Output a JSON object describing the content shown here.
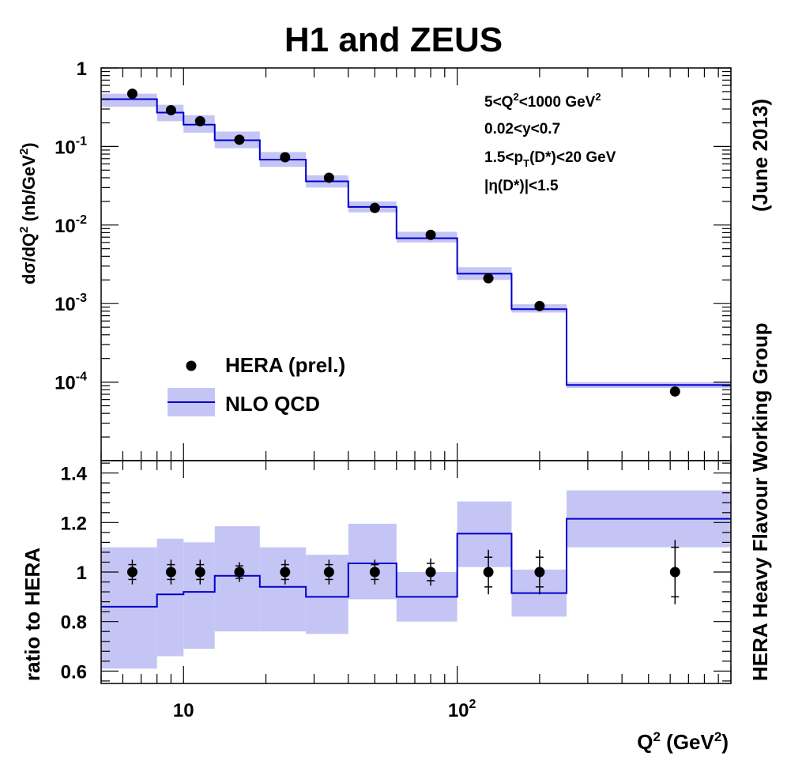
{
  "title": "H1 and ZEUS",
  "side_label": "HERA Heavy Flavour Working Group",
  "side_date": "(June 2013)",
  "chart_data": [
    {
      "type": "scatter",
      "panel": "cross-section",
      "xscale": "log",
      "yscale": "log",
      "xlim": [
        5,
        1000
      ],
      "ylim": [
        1e-05,
        1
      ],
      "ylabel_parts": {
        "a": "dσ/dQ",
        "sup": "2",
        "b": " (nb/GeV",
        "sup2": "2",
        "c": ")"
      },
      "y_ticks": [
        {
          "v": 1,
          "base": "1",
          "exp": ""
        },
        {
          "v": 0.1,
          "base": "10",
          "exp": "-1"
        },
        {
          "v": 0.01,
          "base": "10",
          "exp": "-2"
        },
        {
          "v": 0.001,
          "base": "10",
          "exp": "-3"
        },
        {
          "v": 0.0001,
          "base": "10",
          "exp": "-4"
        }
      ],
      "cuts": [
        {
          "pre": "5<Q",
          "sup": "2",
          "post": "<1000 GeV",
          "sup2": "2"
        },
        {
          "pre": "0.02<y<0.7"
        },
        {
          "pre": "1.5<p",
          "sub": "T",
          "post": "(D*)<20 GeV"
        },
        {
          "pre": "|η(D*)|<1.5"
        }
      ],
      "legend": [
        "HERA (prel.)",
        "NLO QCD"
      ],
      "bin_edges": [
        5,
        8,
        10,
        13,
        19,
        28,
        40,
        60,
        100,
        158,
        251,
        1000
      ],
      "series": [
        {
          "name": "HERA (prel.)",
          "x": [
            6.5,
            9,
            11.5,
            16,
            23.5,
            34,
            50,
            80,
            130,
            200,
            625
          ],
          "y": [
            0.47,
            0.29,
            0.21,
            0.122,
            0.073,
            0.04,
            0.0165,
            0.0075,
            0.0021,
            0.00093,
            7.6e-05
          ]
        },
        {
          "name": "NLO QCD",
          "values": [
            0.4,
            0.27,
            0.19,
            0.12,
            0.068,
            0.036,
            0.017,
            0.0068,
            0.0024,
            0.00085,
            9.2e-05
          ],
          "band_low": [
            0.32,
            0.21,
            0.15,
            0.095,
            0.055,
            0.03,
            0.0145,
            0.006,
            0.002,
            0.00077,
            8.4e-05
          ],
          "band_high": [
            0.47,
            0.34,
            0.25,
            0.155,
            0.085,
            0.043,
            0.02,
            0.0082,
            0.0029,
            0.00098,
            0.0001
          ]
        }
      ]
    },
    {
      "type": "scatter",
      "panel": "ratio",
      "xscale": "log",
      "xlim": [
        5,
        1000
      ],
      "ylim": [
        0.55,
        1.45
      ],
      "xlabel_parts": {
        "a": "Q",
        "sup": "2",
        "b": " (GeV",
        "sup2": "2",
        "c": ")"
      },
      "ylabel": "ratio to HERA",
      "y_ticks": [
        {
          "v": 0.6,
          "label": "0.6"
        },
        {
          "v": 0.8,
          "label": "0.8"
        },
        {
          "v": 1,
          "label": "1"
        },
        {
          "v": 1.2,
          "label": "1.2"
        },
        {
          "v": 1.4,
          "label": "1.4"
        }
      ],
      "x_ticks": [
        {
          "v": 10,
          "base": "10",
          "exp": ""
        },
        {
          "v": 100,
          "base": "10",
          "exp": "2"
        }
      ],
      "bin_edges": [
        5,
        8,
        10,
        13,
        19,
        28,
        40,
        60,
        100,
        158,
        251,
        1000
      ],
      "series": [
        {
          "name": "HERA (prel.)",
          "x": [
            6.5,
            9,
            11.5,
            16,
            23.5,
            34,
            50,
            80,
            130,
            200,
            625
          ],
          "y": [
            1,
            1,
            1,
            1,
            1,
            1,
            1,
            1,
            1,
            1,
            1
          ],
          "err_stat": [
            0.03,
            0.03,
            0.03,
            0.025,
            0.03,
            0.03,
            0.03,
            0.035,
            0.06,
            0.06,
            0.1
          ],
          "err_tot": [
            0.05,
            0.05,
            0.05,
            0.04,
            0.05,
            0.05,
            0.05,
            0.055,
            0.09,
            0.09,
            0.13
          ]
        },
        {
          "name": "NLO QCD",
          "values": [
            0.86,
            0.91,
            0.92,
            0.985,
            0.94,
            0.9,
            1.035,
            0.9,
            1.155,
            0.915,
            1.215
          ],
          "band_low": [
            0.61,
            0.66,
            0.69,
            0.76,
            0.76,
            0.75,
            0.89,
            0.8,
            1.02,
            0.82,
            1.1
          ],
          "band_high": [
            1.1,
            1.135,
            1.12,
            1.185,
            1.1,
            1.07,
            1.195,
            1.0,
            1.285,
            1.01,
            1.33
          ]
        }
      ]
    }
  ]
}
